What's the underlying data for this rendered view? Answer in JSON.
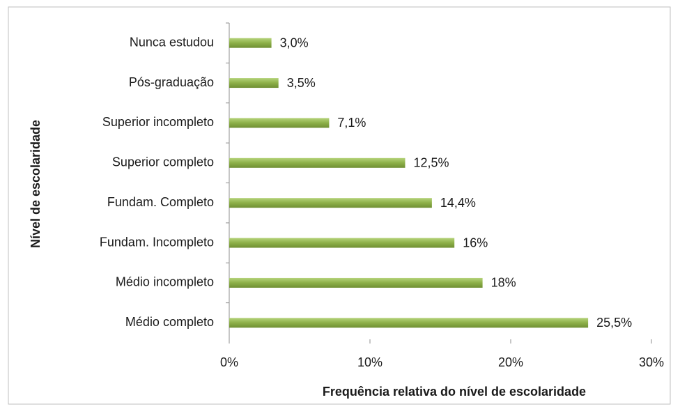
{
  "chart_data": {
    "type": "bar",
    "orientation": "horizontal",
    "x_label": "Frequência relativa do nível de escolaridade",
    "y_label": "Nível de escolaridade",
    "categories": [
      "Nunca estudou",
      "Pós-graduação",
      "Superior incompleto",
      "Superior completo",
      "Fundam. Completo",
      "Fundam. Incompleto",
      "Médio incompleto",
      "Médio completo"
    ],
    "values": [
      3.0,
      3.5,
      7.1,
      12.5,
      14.4,
      16,
      18,
      25.5
    ],
    "value_labels": [
      "3,0%",
      "3,5%",
      "7,1%",
      "12,5%",
      "14,4%",
      "16%",
      "18%",
      "25,5%"
    ],
    "color": "#8db048",
    "xlim": [
      0,
      30
    ],
    "xticks": [
      {
        "value": 0,
        "label": "0%"
      },
      {
        "value": 10,
        "label": "10%"
      },
      {
        "value": 20,
        "label": "20%"
      },
      {
        "value": 30,
        "label": "30%"
      }
    ],
    "grid": false
  }
}
